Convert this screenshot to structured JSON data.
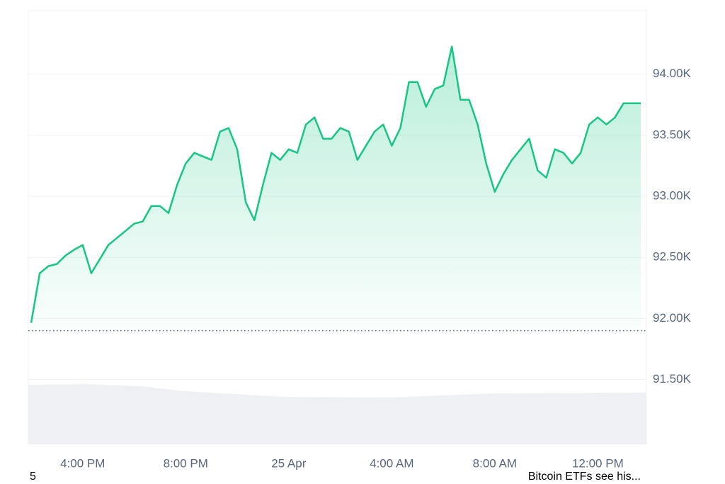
{
  "chart_data": {
    "type": "line",
    "categories": [
      null,
      null,
      null,
      null,
      null,
      null,
      "4:00 PM",
      null,
      null,
      null,
      null,
      null,
      null,
      null,
      null,
      null,
      null,
      null,
      "8:00 PM",
      null,
      null,
      null,
      null,
      null,
      null,
      null,
      null,
      null,
      null,
      null,
      "25 Apr",
      null,
      null,
      null,
      null,
      null,
      null,
      null,
      null,
      null,
      null,
      null,
      "4:00 AM",
      null,
      null,
      null,
      null,
      null,
      null,
      null,
      null,
      null,
      null,
      null,
      "8:00 AM",
      null,
      null,
      null,
      null,
      null,
      null,
      null,
      null,
      null,
      null,
      null,
      "12:00 PM",
      null,
      null,
      null,
      null,
      null
    ],
    "series": [
      {
        "color": "#16c784",
        "values": [
          91964,
          92370,
          92428,
          92446,
          92515,
          92562,
          92602,
          92370,
          92486,
          92602,
          92660,
          92718,
          92776,
          92794,
          92921,
          92921,
          92863,
          93095,
          93269,
          93356,
          93327,
          93298,
          93530,
          93559,
          93385,
          92950,
          92805,
          93095,
          93356,
          93298,
          93385,
          93356,
          93588,
          93646,
          93472,
          93472,
          93559,
          93530,
          93298,
          93414,
          93530,
          93588,
          93414,
          93559,
          93936,
          93936,
          93733,
          93878,
          93907,
          94226,
          93791,
          93791,
          93588,
          93269,
          93037,
          93182,
          93298,
          93385,
          93472,
          93211,
          93153,
          93385,
          93356,
          93269,
          93356,
          93588,
          93646,
          93588,
          93646,
          93762,
          93762,
          93762
        ]
      }
    ],
    "baseline": 91900,
    "ylim": [
      90970,
      94520
    ],
    "yticks": [
      {
        "value": 91500,
        "label": "91.50K"
      },
      {
        "value": 92000,
        "label": "92.00K"
      },
      {
        "value": 92500,
        "label": "92.50K"
      },
      {
        "value": 93000,
        "label": "93.00K"
      },
      {
        "value": 93500,
        "label": "93.50K"
      },
      {
        "value": 94000,
        "label": "94.00K"
      }
    ],
    "grid": true
  },
  "footer": {
    "left": "5",
    "right": "Bitcoin ETFs see his..."
  }
}
